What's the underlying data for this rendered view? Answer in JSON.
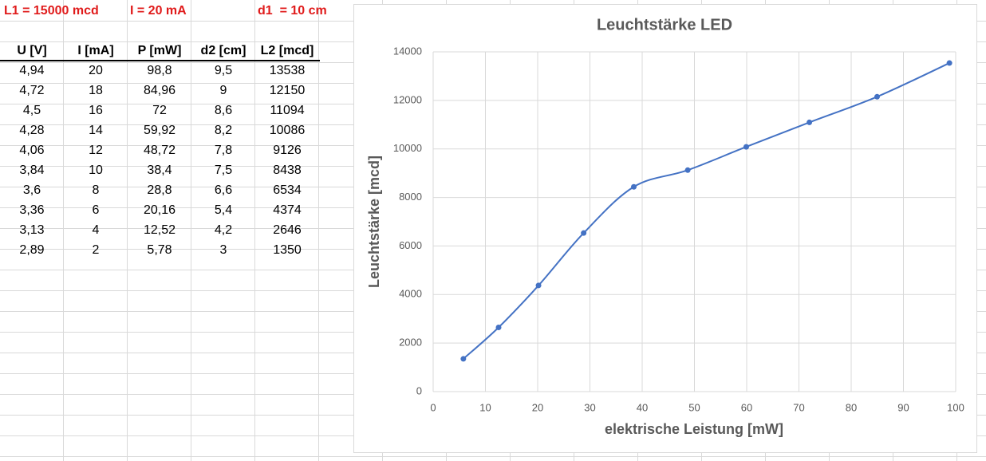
{
  "cells": {
    "l1": "L1 = 15000 mcd",
    "i": "I = 20 mA",
    "d1": "d1  = 10 cm"
  },
  "table": {
    "columns": [
      "U [V]",
      "I [mA]",
      "P [mW]",
      "d2 [cm]",
      "L2 [mcd]"
    ],
    "rows": [
      [
        "4,94",
        "20",
        "98,8",
        "9,5",
        "13538"
      ],
      [
        "4,72",
        "18",
        "84,96",
        "9",
        "12150"
      ],
      [
        "4,5",
        "16",
        "72",
        "8,6",
        "11094"
      ],
      [
        "4,28",
        "14",
        "59,92",
        "8,2",
        "10086"
      ],
      [
        "4,06",
        "12",
        "48,72",
        "7,8",
        "9126"
      ],
      [
        "3,84",
        "10",
        "38,4",
        "7,5",
        "8438"
      ],
      [
        "3,6",
        "8",
        "28,8",
        "6,6",
        "6534"
      ],
      [
        "3,36",
        "6",
        "20,16",
        "5,4",
        "4374"
      ],
      [
        "3,13",
        "4",
        "12,52",
        "4,2",
        "2646"
      ],
      [
        "2,89",
        "2",
        "5,78",
        "3",
        "1350"
      ]
    ]
  },
  "chart_data": {
    "type": "scatter",
    "title": "Leuchtstärke LED",
    "x_label": "elektrische Leistung [mW]",
    "y_label": "Leuchtstärke [mcd]",
    "x": [
      5.78,
      12.52,
      20.16,
      28.8,
      38.4,
      48.72,
      59.92,
      72,
      84.96,
      98.8
    ],
    "values": [
      1350,
      2646,
      4374,
      6534,
      8438,
      9126,
      10086,
      11094,
      12150,
      13538
    ],
    "color": "#4472c4",
    "smooth": true,
    "xlim": [
      0,
      100
    ],
    "ylim": [
      0,
      14000
    ],
    "xticks": [
      0,
      10,
      20,
      30,
      40,
      50,
      60,
      70,
      80,
      90,
      100
    ],
    "yticks": [
      0,
      2000,
      4000,
      6000,
      8000,
      10000,
      12000,
      14000
    ],
    "grid": true
  }
}
